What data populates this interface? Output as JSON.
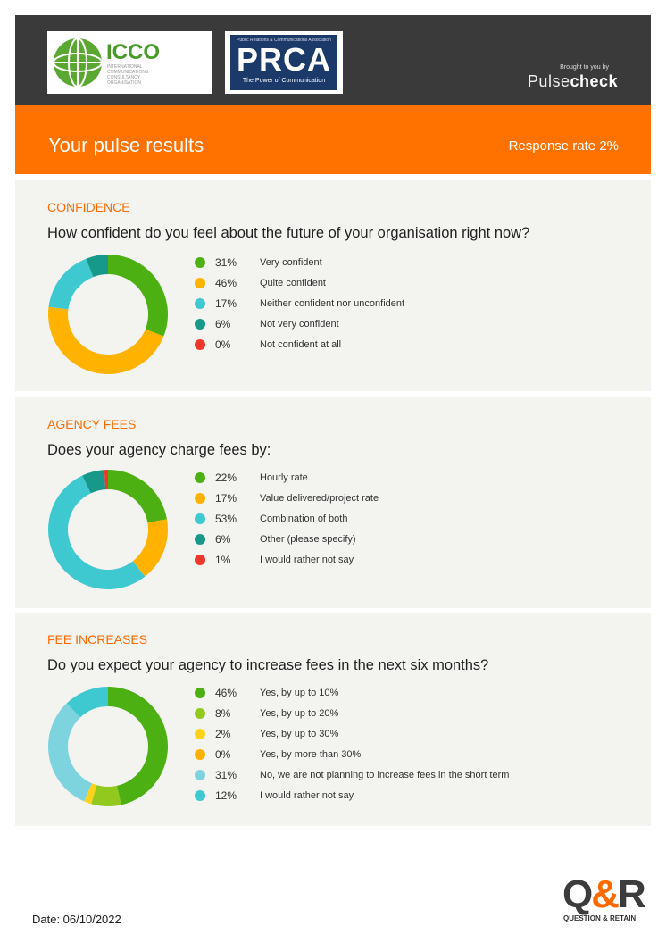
{
  "header": {
    "logos": [
      {
        "name": "ICCO",
        "lettering": [
          "ICCO",
          "INTERNATIONAL",
          "COMMUNICATIONS",
          "CONSULTANCY",
          "ORGANISATION"
        ]
      },
      {
        "name": "PRCA",
        "lettering": [
          "Public Relations & Communications Association",
          "PRCA",
          "The Power of Communication"
        ]
      }
    ],
    "brought_by": "Brought to you by",
    "brand_light": "Pulse",
    "brand_bold": "check"
  },
  "banner": {
    "title": "Your pulse results",
    "response_rate": "Response rate 2%"
  },
  "sections": [
    {
      "title": "CONFIDENCE",
      "question": "How confident do you feel about the future of your organisation right now?",
      "chart_data": {
        "type": "pie",
        "values": [
          31,
          46,
          17,
          6,
          0
        ],
        "categories": [
          "Very confident",
          "Quite confident",
          "Neither confident nor unconfident",
          "Not very confident",
          "Not confident at all"
        ],
        "colors": [
          "#4caf12",
          "#ffb300",
          "#3ec8d0",
          "#17998a",
          "#f0382a"
        ]
      },
      "items": [
        {
          "pct": "31%",
          "label": "Very confident",
          "color": "#4caf12"
        },
        {
          "pct": "46%",
          "label": "Quite confident",
          "color": "#ffb300"
        },
        {
          "pct": "17%",
          "label": "Neither confident nor unconfident",
          "color": "#3ec8d0"
        },
        {
          "pct": "6%",
          "label": "Not very confident",
          "color": "#17998a"
        },
        {
          "pct": "0%",
          "label": "Not confident at all",
          "color": "#f0382a"
        }
      ]
    },
    {
      "title": "AGENCY FEES",
      "question": "Does your agency charge fees by:",
      "chart_data": {
        "type": "pie",
        "values": [
          22,
          17,
          53,
          6,
          1
        ],
        "categories": [
          "Hourly rate",
          "Value delivered/project rate",
          "Combination of both",
          "Other (please specify)",
          "I would rather not say"
        ],
        "colors": [
          "#4caf12",
          "#ffb300",
          "#3ec8d0",
          "#17998a",
          "#f0382a"
        ]
      },
      "items": [
        {
          "pct": "22%",
          "label": "Hourly rate",
          "color": "#4caf12"
        },
        {
          "pct": "17%",
          "label": "Value delivered/project rate",
          "color": "#ffb300"
        },
        {
          "pct": "53%",
          "label": "Combination of both",
          "color": "#3ec8d0"
        },
        {
          "pct": "6%",
          "label": "Other (please specify)",
          "color": "#17998a"
        },
        {
          "pct": "1%",
          "label": "I would rather not say",
          "color": "#f0382a"
        }
      ]
    },
    {
      "title": "FEE INCREASES",
      "question": "Do you expect your agency to increase fees in the next six months?",
      "chart_data": {
        "type": "pie",
        "values": [
          46,
          8,
          2,
          0,
          31,
          12
        ],
        "categories": [
          "Yes, by up to 10%",
          "Yes, by up to 20%",
          "Yes, by up to 30%",
          "Yes, by more than 30%",
          "No, we are not planning to increase fees in the short term",
          "I would rather not say"
        ],
        "colors": [
          "#4caf12",
          "#92c91e",
          "#ffd21a",
          "#ffb300",
          "#7dd3de",
          "#3ec8d0"
        ]
      },
      "items": [
        {
          "pct": "46%",
          "label": "Yes, by up to 10%",
          "color": "#4caf12"
        },
        {
          "pct": "8%",
          "label": "Yes, by up to 20%",
          "color": "#92c91e"
        },
        {
          "pct": "2%",
          "label": "Yes, by up to 30%",
          "color": "#ffd21a"
        },
        {
          "pct": "0%",
          "label": "Yes, by more than 30%",
          "color": "#ffb300"
        },
        {
          "pct": "31%",
          "label": "No, we are not planning to increase fees in the short term",
          "color": "#7dd3de"
        },
        {
          "pct": "12%",
          "label": "I would rather not say",
          "color": "#3ec8d0"
        }
      ]
    }
  ],
  "footer": {
    "date": "Date: 06/10/2022",
    "logo_main_left": "Q",
    "logo_main_amp": "&",
    "logo_main_right": "R",
    "logo_tag": "QUESTION & RETAIN"
  }
}
